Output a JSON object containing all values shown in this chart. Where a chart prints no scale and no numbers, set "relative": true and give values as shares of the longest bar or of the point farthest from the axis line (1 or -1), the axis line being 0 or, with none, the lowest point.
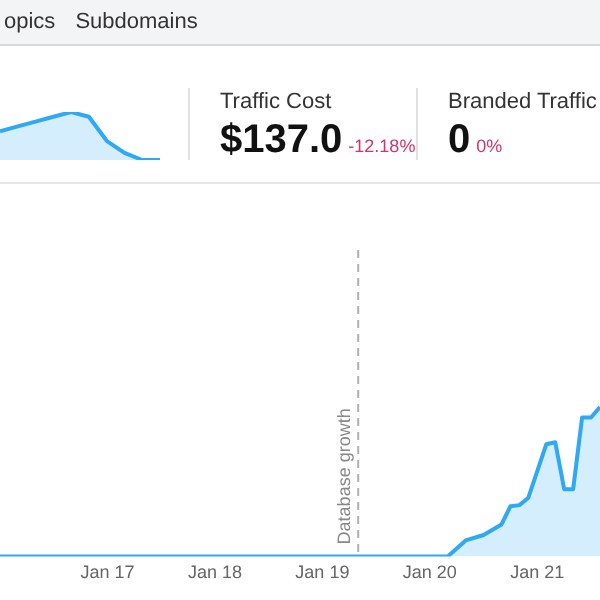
{
  "chart_data": [
    {
      "type": "other",
      "annotations": [
        "opics",
        "Subdomains"
      ]
    },
    {
      "type": "area",
      "relative": true,
      "tick_labels": false,
      "grid": false,
      "legend": false,
      "marker": "none",
      "categories": [
        null,
        null,
        null,
        null,
        null,
        null,
        null,
        null,
        null,
        null
      ],
      "series": [
        {
          "color": "#2fa8f5",
          "values": [
            0.6,
            0.7,
            0.8,
            0.9,
            1,
            0.9,
            0.4,
            0.15,
            0,
            0
          ]
        }
      ]
    },
    {
      "type": "other",
      "title": "Traffic Cost",
      "annotations": [
        "$137.0",
        "-12.18%"
      ]
    },
    {
      "type": "other",
      "title": "Branded Traffic",
      "annotations": [
        "0",
        "0%"
      ]
    },
    {
      "type": "area",
      "relative": true,
      "tick_labels": "x",
      "grid": false,
      "legend": false,
      "marker": "none",
      "xlim": [
        "2016-01",
        "2021-08"
      ],
      "xticks": [
        {
          "value": "2017-01",
          "label": "Jan 17"
        },
        {
          "value": "2018-01",
          "label": "Jan 18"
        },
        {
          "value": "2019-01",
          "label": "Jan 19"
        },
        {
          "value": "2020-01",
          "label": "Jan 20"
        },
        {
          "value": "2021-01",
          "label": "Jan 21"
        }
      ],
      "ref_lines": [
        {
          "axis": "x",
          "value": "2019-05",
          "label": "Database growth",
          "color": "#b0b0b0",
          "line_style": "dashed"
        }
      ],
      "series": [
        {
          "color": "#2fa8f5",
          "x": [
            "2016-01",
            "2020-03",
            "2020-05",
            "2020-07",
            "2020-09",
            "2020-10",
            "2020-11",
            "2020-12",
            "2021-02",
            "2021-03",
            "2021-04",
            "2021-05",
            "2021-06",
            "2021-07",
            "2021-08"
          ],
          "values": [
            0,
            0,
            0.107,
            0.143,
            0.214,
            0.336,
            0.343,
            0.393,
            0.75,
            0.764,
            0.45,
            0.45,
            0.929,
            0.929,
            1
          ]
        }
      ]
    }
  ]
}
